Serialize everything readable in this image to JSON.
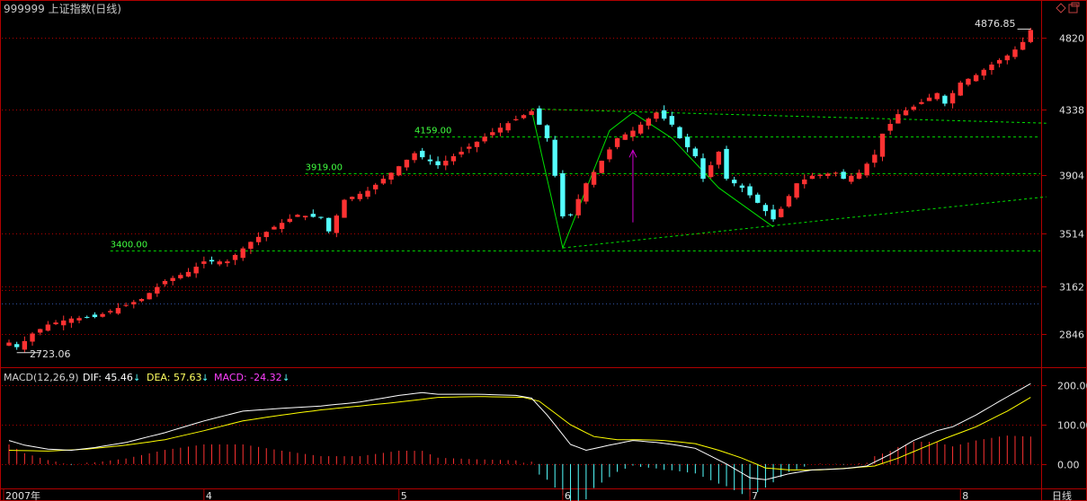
{
  "title": "999999 上证指数(日线)",
  "period_label": "日线",
  "colors": {
    "up": "#ff3232",
    "down": "#54ffff",
    "frame": "#b00000",
    "dotted": "#b00000",
    "support": "#00d000",
    "pattern": "#00e000",
    "arrow": "#d000d0",
    "dif": "#ffffff",
    "dea": "#ffff00",
    "macd_label": "#ff40ff"
  },
  "corner_icons": [
    "diamond-icon",
    "restore-icon"
  ],
  "price_axis": {
    "ticks": [
      4820,
      4338,
      3904,
      3514,
      3162,
      2846
    ],
    "ylim": [
      2650,
      4950
    ]
  },
  "last_price_label": "4876.85",
  "low_label": "2723.06",
  "support_lines": [
    {
      "label": "3400.00",
      "value": 3400,
      "start": 13
    },
    {
      "label": "3919.00",
      "value": 3919,
      "start": 38
    },
    {
      "label": "4159.00",
      "value": 4159,
      "start": 52
    }
  ],
  "time_axis": {
    "labels": [
      {
        "text": "2007年",
        "index": 0
      },
      {
        "text": "4",
        "index": 25
      },
      {
        "text": "5",
        "index": 50
      },
      {
        "text": "6",
        "index": 71
      },
      {
        "text": "7",
        "index": 95
      },
      {
        "text": "8",
        "index": 122
      }
    ]
  },
  "macd": {
    "label": "MACD(12,26,9)",
    "dif_label": "DIF: 45.46",
    "dea_label": "DEA: 57.63",
    "macd_label": "MACD: -24.32",
    "ticks": [
      200,
      100,
      0
    ],
    "ylim": [
      -60,
      240
    ]
  },
  "chart_data": {
    "type": "candlestick",
    "title": "999999 上证指数(日线)",
    "anchors": [
      [
        0,
        2790
      ],
      [
        1,
        2760
      ],
      [
        2,
        2800
      ],
      [
        3,
        2850
      ],
      [
        5,
        2910
      ],
      [
        8,
        2950
      ],
      [
        11,
        2960
      ],
      [
        14,
        3020
      ],
      [
        17,
        3080
      ],
      [
        20,
        3200
      ],
      [
        23,
        3260
      ],
      [
        25,
        3330
      ],
      [
        28,
        3330
      ],
      [
        31,
        3460
      ],
      [
        34,
        3560
      ],
      [
        37,
        3640
      ],
      [
        40,
        3620
      ],
      [
        41,
        3530
      ],
      [
        43,
        3740
      ],
      [
        46,
        3800
      ],
      [
        49,
        3920
      ],
      [
        52,
        4050
      ],
      [
        55,
        3970
      ],
      [
        58,
        4060
      ],
      [
        61,
        4160
      ],
      [
        64,
        4250
      ],
      [
        67,
        4330
      ],
      [
        69,
        4150
      ],
      [
        70,
        3900
      ],
      [
        71,
        3630
      ],
      [
        72,
        3640
      ],
      [
        74,
        3850
      ],
      [
        76,
        4000
      ],
      [
        78,
        4150
      ],
      [
        80,
        4200
      ],
      [
        83,
        4320
      ],
      [
        85,
        4240
      ],
      [
        86,
        4150
      ],
      [
        88,
        4030
      ],
      [
        89,
        3880
      ],
      [
        91,
        4060
      ],
      [
        92,
        3880
      ],
      [
        94,
        3820
      ],
      [
        96,
        3720
      ],
      [
        98,
        3610
      ],
      [
        99,
        3680
      ],
      [
        101,
        3850
      ],
      [
        103,
        3900
      ],
      [
        106,
        3920
      ],
      [
        107,
        3880
      ],
      [
        109,
        3920
      ],
      [
        111,
        4040
      ],
      [
        112,
        4180
      ],
      [
        114,
        4310
      ],
      [
        116,
        4360
      ],
      [
        118,
        4420
      ],
      [
        119,
        4450
      ],
      [
        120,
        4380
      ],
      [
        122,
        4520
      ],
      [
        124,
        4570
      ],
      [
        126,
        4640
      ],
      [
        128,
        4700
      ],
      [
        129,
        4740
      ],
      [
        130,
        4790
      ],
      [
        131,
        4870
      ]
    ],
    "dif_anchors": [
      [
        0,
        60
      ],
      [
        2,
        48
      ],
      [
        5,
        38
      ],
      [
        8,
        35
      ],
      [
        11,
        42
      ],
      [
        15,
        55
      ],
      [
        20,
        80
      ],
      [
        25,
        110
      ],
      [
        30,
        135
      ],
      [
        35,
        142
      ],
      [
        40,
        148
      ],
      [
        45,
        158
      ],
      [
        50,
        175
      ],
      [
        53,
        182
      ],
      [
        55,
        178
      ],
      [
        60,
        178
      ],
      [
        65,
        175
      ],
      [
        67,
        168
      ],
      [
        69,
        125
      ],
      [
        71,
        75
      ],
      [
        72,
        50
      ],
      [
        74,
        35
      ],
      [
        77,
        48
      ],
      [
        80,
        60
      ],
      [
        83,
        55
      ],
      [
        85,
        50
      ],
      [
        88,
        40
      ],
      [
        90,
        20
      ],
      [
        92,
        0
      ],
      [
        95,
        -35
      ],
      [
        97,
        -40
      ],
      [
        100,
        -25
      ],
      [
        103,
        -15
      ],
      [
        107,
        -12
      ],
      [
        110,
        -5
      ],
      [
        113,
        25
      ],
      [
        116,
        60
      ],
      [
        119,
        85
      ],
      [
        121,
        95
      ],
      [
        124,
        125
      ],
      [
        127,
        160
      ],
      [
        131,
        205
      ]
    ],
    "dea_anchors": [
      [
        0,
        35
      ],
      [
        5,
        33
      ],
      [
        10,
        38
      ],
      [
        15,
        48
      ],
      [
        20,
        62
      ],
      [
        25,
        85
      ],
      [
        30,
        110
      ],
      [
        35,
        125
      ],
      [
        40,
        138
      ],
      [
        45,
        148
      ],
      [
        50,
        158
      ],
      [
        55,
        170
      ],
      [
        60,
        172
      ],
      [
        66,
        170
      ],
      [
        68,
        160
      ],
      [
        70,
        130
      ],
      [
        72,
        100
      ],
      [
        75,
        70
      ],
      [
        78,
        62
      ],
      [
        81,
        62
      ],
      [
        84,
        60
      ],
      [
        88,
        52
      ],
      [
        91,
        35
      ],
      [
        94,
        15
      ],
      [
        97,
        -10
      ],
      [
        100,
        -15
      ],
      [
        104,
        -15
      ],
      [
        108,
        -10
      ],
      [
        111,
        -5
      ],
      [
        114,
        15
      ],
      [
        117,
        40
      ],
      [
        120,
        65
      ],
      [
        124,
        95
      ],
      [
        128,
        135
      ],
      [
        131,
        170
      ]
    ],
    "patterns": [
      {
        "type": "polyline",
        "points": [
          [
            67,
            4338
          ],
          [
            71,
            3420
          ],
          [
            77,
            4200
          ],
          [
            80,
            4320
          ],
          [
            85,
            4150
          ],
          [
            91,
            3820
          ],
          [
            98,
            3560
          ]
        ]
      },
      {
        "type": "line",
        "points": [
          [
            71,
            3420
          ],
          [
            133,
            3760
          ]
        ]
      },
      {
        "type": "line",
        "points": [
          [
            67,
            4345
          ],
          [
            133,
            4250
          ]
        ]
      }
    ],
    "arrow": {
      "index": 80,
      "from": 3590,
      "to": 4070
    }
  }
}
